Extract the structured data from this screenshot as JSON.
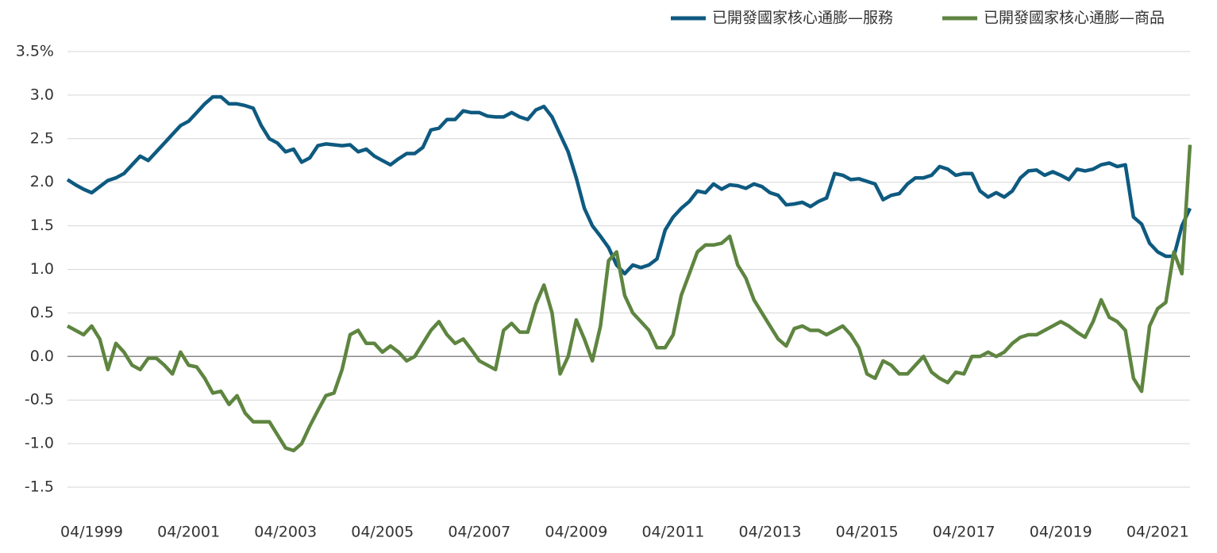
{
  "chart_data": {
    "type": "line",
    "categories": [
      null,
      null,
      null,
      "04/1999",
      null,
      null,
      null,
      null,
      null,
      null,
      null,
      null,
      null,
      null,
      null,
      "04/2001",
      null,
      null,
      null,
      null,
      null,
      null,
      null,
      null,
      null,
      null,
      null,
      "04/2003",
      null,
      null,
      null,
      null,
      null,
      null,
      null,
      null,
      null,
      null,
      null,
      "04/2005",
      null,
      null,
      null,
      null,
      null,
      null,
      null,
      null,
      null,
      null,
      null,
      "04/2007",
      null,
      null,
      null,
      null,
      null,
      null,
      null,
      null,
      null,
      null,
      null,
      "04/2009",
      null,
      null,
      null,
      null,
      null,
      null,
      null,
      null,
      null,
      null,
      null,
      "04/2011",
      null,
      null,
      null,
      null,
      null,
      null,
      null,
      null,
      null,
      null,
      null,
      "04/2013",
      null,
      null,
      null,
      null,
      null,
      null,
      null,
      null,
      null,
      null,
      null,
      "04/2015",
      null,
      null,
      null,
      null,
      null,
      null,
      null,
      null,
      null,
      null,
      null,
      "04/2017",
      null,
      null,
      null,
      null,
      null,
      null,
      null,
      null,
      null,
      null,
      null,
      "04/2019",
      null,
      null,
      null,
      null,
      null,
      null,
      null,
      null,
      null,
      null,
      null,
      "04/2021",
      null,
      null,
      null,
      null
    ],
    "series": [
      {
        "name": "已開發國家核心通膨—服務",
        "color": "#0e5a80",
        "values": [
          2.03,
          1.97,
          1.92,
          1.88,
          1.95,
          2.02,
          2.05,
          2.1,
          2.2,
          2.3,
          2.25,
          2.35,
          2.45,
          2.55,
          2.65,
          2.7,
          2.8,
          2.9,
          2.98,
          2.98,
          2.9,
          2.9,
          2.88,
          2.85,
          2.65,
          2.5,
          2.45,
          2.35,
          2.38,
          2.23,
          2.28,
          2.42,
          2.44,
          2.43,
          2.42,
          2.43,
          2.35,
          2.38,
          2.3,
          2.25,
          2.2,
          2.27,
          2.33,
          2.33,
          2.4,
          2.6,
          2.62,
          2.72,
          2.72,
          2.82,
          2.8,
          2.8,
          2.76,
          2.75,
          2.75,
          2.8,
          2.75,
          2.72,
          2.83,
          2.87,
          2.75,
          2.55,
          2.35,
          2.05,
          1.7,
          1.5,
          1.38,
          1.25,
          1.05,
          0.95,
          1.05,
          1.02,
          1.05,
          1.12,
          1.45,
          1.6,
          1.7,
          1.78,
          1.9,
          1.88,
          1.98,
          1.92,
          1.97,
          1.96,
          1.93,
          1.98,
          1.95,
          1.88,
          1.85,
          1.74,
          1.75,
          1.77,
          1.72,
          1.78,
          1.82,
          2.1,
          2.08,
          2.03,
          2.04,
          2.01,
          1.98,
          1.8,
          1.85,
          1.87,
          1.98,
          2.05,
          2.05,
          2.08,
          2.18,
          2.15,
          2.08,
          2.1,
          2.1,
          1.9,
          1.83,
          1.88,
          1.83,
          1.9,
          2.05,
          2.13,
          2.14,
          2.08,
          2.12,
          2.08,
          2.03,
          2.15,
          2.13,
          2.15,
          2.2,
          2.22,
          2.18,
          2.2,
          1.6,
          1.52,
          1.3,
          1.2,
          1.15,
          1.15,
          1.5,
          1.7
        ]
      },
      {
        "name": "已開發國家核心通膨—商品",
        "color": "#5e8540",
        "values": [
          0.35,
          0.3,
          0.25,
          0.35,
          0.2,
          -0.15,
          0.15,
          0.05,
          -0.1,
          -0.15,
          -0.02,
          -0.02,
          -0.1,
          -0.2,
          0.05,
          -0.1,
          -0.12,
          -0.25,
          -0.42,
          -0.4,
          -0.55,
          -0.45,
          -0.65,
          -0.75,
          -0.75,
          -0.75,
          -0.9,
          -1.05,
          -1.08,
          -1.0,
          -0.8,
          -0.62,
          -0.45,
          -0.42,
          -0.15,
          0.25,
          0.3,
          0.15,
          0.15,
          0.05,
          0.12,
          0.05,
          -0.05,
          0.0,
          0.15,
          0.3,
          0.4,
          0.25,
          0.15,
          0.2,
          0.08,
          -0.05,
          -0.1,
          -0.15,
          0.3,
          0.38,
          0.28,
          0.28,
          0.6,
          0.82,
          0.5,
          -0.2,
          0.0,
          0.42,
          0.2,
          -0.05,
          0.35,
          1.1,
          1.2,
          0.7,
          0.5,
          0.4,
          0.3,
          0.1,
          0.1,
          0.25,
          0.7,
          0.95,
          1.2,
          1.28,
          1.28,
          1.3,
          1.38,
          1.05,
          0.9,
          0.65,
          0.5,
          0.35,
          0.2,
          0.12,
          0.32,
          0.35,
          0.3,
          0.3,
          0.25,
          0.3,
          0.35,
          0.25,
          0.1,
          -0.2,
          -0.25,
          -0.05,
          -0.1,
          -0.2,
          -0.2,
          -0.1,
          0.0,
          -0.18,
          -0.25,
          -0.3,
          -0.18,
          -0.2,
          0.0,
          0.0,
          0.05,
          0.0,
          0.05,
          0.15,
          0.22,
          0.25,
          0.25,
          0.3,
          0.35,
          0.4,
          0.35,
          0.28,
          0.22,
          0.4,
          0.65,
          0.45,
          0.4,
          0.3,
          -0.25,
          -0.4,
          0.35,
          0.55,
          0.62,
          1.2,
          0.95,
          2.43
        ]
      }
    ],
    "ylim": [
      -1.5,
      3.5
    ],
    "yticks": [
      {
        "value": 3.5,
        "label": "3.5%"
      },
      {
        "value": 3.0,
        "label": "3.0"
      },
      2.5,
      {
        "value": 2.0,
        "label": "2.0"
      },
      1.5,
      {
        "value": 1.0,
        "label": "1.0"
      },
      0.5,
      {
        "value": 0.0,
        "label": "0.0"
      },
      -0.5,
      {
        "value": -1.0,
        "label": "-1.0"
      },
      -1.5
    ],
    "grid": true,
    "legend": "top-right"
  }
}
